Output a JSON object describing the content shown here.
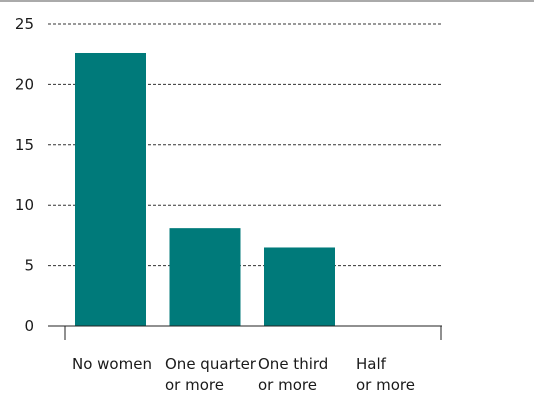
{
  "chart_data": {
    "type": "bar",
    "title": "",
    "xlabel": "",
    "ylabel": "",
    "categories": [
      [
        "No women"
      ],
      [
        "One quarter",
        "or more"
      ],
      [
        "One third",
        "or more"
      ],
      [
        "Half",
        "or more"
      ]
    ],
    "values": [
      22.6,
      8.1,
      6.5,
      0
    ],
    "ylim": [
      0,
      25
    ],
    "yticks": [
      "0",
      "5",
      "10",
      "15",
      "20",
      "25"
    ],
    "grid": true,
    "colors": {
      "bar": "#007a7a",
      "grid": "#333333",
      "axis": "#222222",
      "text": "#1a1a1a"
    }
  }
}
